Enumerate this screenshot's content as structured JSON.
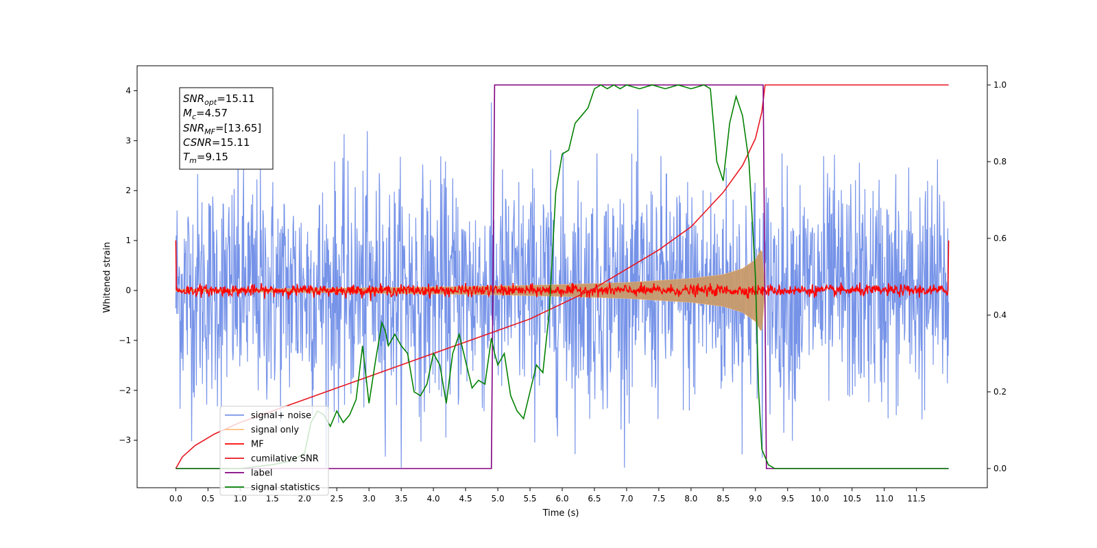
{
  "chart_data": {
    "type": "line",
    "xlabel": "Time (s)",
    "ylabel": "Whitened strain",
    "xlim": [
      -0.6,
      12.6
    ],
    "ylim": [
      -3.95,
      4.5
    ],
    "y2lim": [
      -0.05,
      1.05
    ],
    "x_ticks": [
      0.0,
      0.5,
      1.0,
      1.5,
      2.0,
      2.5,
      3.0,
      3.5,
      4.0,
      4.5,
      5.0,
      5.5,
      6.0,
      6.5,
      7.0,
      7.5,
      8.0,
      8.5,
      9.0,
      9.5,
      10.0,
      10.5,
      11.0,
      11.5
    ],
    "x_tick_labels": [
      "0.0",
      "0.5",
      "1.0",
      "1.5",
      "2.0",
      "2.5",
      "3.0",
      "3.5",
      "4.0",
      "4.5",
      "5.0",
      "5.5",
      "6.0",
      "6.5",
      "7.0",
      "7.5",
      "8.0",
      "8.5",
      "9.0",
      "9.5",
      "10.0",
      "10.5",
      "11.0",
      "11.5"
    ],
    "y_ticks": [
      -3,
      -2,
      -1,
      0,
      1,
      2,
      3,
      4
    ],
    "y_tick_labels": [
      "−3",
      "−2",
      "−1",
      "0",
      "1",
      "2",
      "3",
      "4"
    ],
    "y2_ticks": [
      0.0,
      0.2,
      0.4,
      0.6,
      0.8,
      1.0
    ],
    "y2_tick_labels": [
      "0.0",
      "0.2",
      "0.4",
      "0.6",
      "0.8",
      "1.0"
    ],
    "grid": false,
    "legend_position": "lower-left",
    "colors": {
      "signal_noise": "#7693e8",
      "signal_only": "#ffbe78",
      "mf": "#ff0000",
      "csnr": "#e8141e",
      "label": "#800080",
      "stats": "#008000"
    },
    "series": [
      {
        "name": "signal+ noise",
        "axis": "left",
        "noise_amplitude": 2.0,
        "x_range": [
          0.0,
          12.0
        ]
      },
      {
        "name": "signal only",
        "axis": "left",
        "envelope_x": [
          0.0,
          2.0,
          4.0,
          5.0,
          6.0,
          7.0,
          8.0,
          8.5,
          8.8,
          9.0,
          9.1,
          9.15
        ],
        "envelope_y": [
          0.02,
          0.04,
          0.07,
          0.09,
          0.12,
          0.16,
          0.24,
          0.32,
          0.44,
          0.62,
          0.85,
          0.0
        ]
      },
      {
        "name": "MF",
        "axis": "left",
        "baseline": 0.0,
        "noise_amplitude": 0.08,
        "x_range": [
          0.0,
          12.0
        ]
      },
      {
        "name": "cumilative SNR",
        "axis": "right",
        "x": [
          0.0,
          0.1,
          0.3,
          0.6,
          1.0,
          1.5,
          2.0,
          2.5,
          3.0,
          3.5,
          4.0,
          4.5,
          5.0,
          5.5,
          6.0,
          6.5,
          7.0,
          7.5,
          8.0,
          8.5,
          8.8,
          9.0,
          9.1,
          9.15,
          12.0
        ],
        "y": [
          0.0,
          0.03,
          0.06,
          0.09,
          0.12,
          0.15,
          0.18,
          0.21,
          0.24,
          0.27,
          0.3,
          0.33,
          0.36,
          0.39,
          0.43,
          0.47,
          0.52,
          0.57,
          0.63,
          0.72,
          0.79,
          0.86,
          0.93,
          1.0,
          1.0
        ]
      },
      {
        "name": "label",
        "axis": "right",
        "x": [
          0.0,
          4.9,
          4.95,
          9.12,
          9.17,
          12.0
        ],
        "y": [
          0.0,
          0.0,
          1.0,
          1.0,
          0.0,
          0.0
        ]
      },
      {
        "name": "signal statistics",
        "axis": "right",
        "x": [
          0.0,
          0.5,
          1.0,
          1.5,
          1.8,
          2.0,
          2.1,
          2.2,
          2.3,
          2.4,
          2.5,
          2.6,
          2.7,
          2.8,
          2.9,
          3.0,
          3.1,
          3.2,
          3.25,
          3.3,
          3.4,
          3.5,
          3.6,
          3.7,
          3.8,
          3.9,
          4.0,
          4.1,
          4.2,
          4.3,
          4.4,
          4.5,
          4.6,
          4.7,
          4.8,
          4.9,
          4.95,
          5.0,
          5.1,
          5.2,
          5.3,
          5.4,
          5.5,
          5.6,
          5.7,
          5.8,
          5.9,
          6.0,
          6.1,
          6.2,
          6.3,
          6.4,
          6.5,
          6.6,
          6.7,
          6.8,
          6.9,
          7.0,
          7.2,
          7.4,
          7.6,
          7.8,
          8.0,
          8.2,
          8.3,
          8.4,
          8.5,
          8.6,
          8.7,
          8.8,
          8.9,
          9.0,
          9.05,
          9.1,
          9.2,
          9.3,
          9.5,
          10.0,
          11.0,
          12.0
        ],
        "y": [
          0.0,
          0.0,
          0.0,
          0.01,
          0.02,
          0.04,
          0.12,
          0.15,
          0.14,
          0.11,
          0.15,
          0.12,
          0.14,
          0.18,
          0.32,
          0.17,
          0.28,
          0.38,
          0.36,
          0.32,
          0.35,
          0.32,
          0.3,
          0.2,
          0.19,
          0.22,
          0.3,
          0.27,
          0.17,
          0.3,
          0.35,
          0.28,
          0.21,
          0.23,
          0.22,
          0.34,
          0.3,
          0.27,
          0.3,
          0.19,
          0.15,
          0.13,
          0.2,
          0.27,
          0.25,
          0.41,
          0.72,
          0.82,
          0.83,
          0.9,
          0.92,
          0.94,
          0.99,
          1.0,
          0.99,
          1.0,
          0.99,
          1.0,
          0.99,
          1.0,
          0.99,
          1.0,
          0.99,
          1.0,
          0.99,
          0.8,
          0.75,
          0.9,
          0.97,
          0.92,
          0.8,
          0.5,
          0.2,
          0.05,
          0.01,
          0.0,
          0.0,
          0.0,
          0.0,
          0.0
        ]
      }
    ],
    "legend": [
      "signal+ noise",
      "signal only",
      "MF",
      "cumilative SNR",
      "label",
      "signal statistics"
    ],
    "info_box": {
      "snr_opt": {
        "base": "SNR",
        "sub": "opt",
        "rest": "=15.11"
      },
      "mc": {
        "base": "M",
        "sub": "c",
        "rest": "=4.57"
      },
      "snr_mf": {
        "base": "SNR",
        "sub": "MF",
        "rest": "=[13.65]"
      },
      "csnr": {
        "base": "CSNR",
        "sub": "",
        "rest": "=15.11"
      },
      "tm": {
        "base": "T",
        "sub": "m",
        "rest": "=9.15"
      }
    }
  }
}
